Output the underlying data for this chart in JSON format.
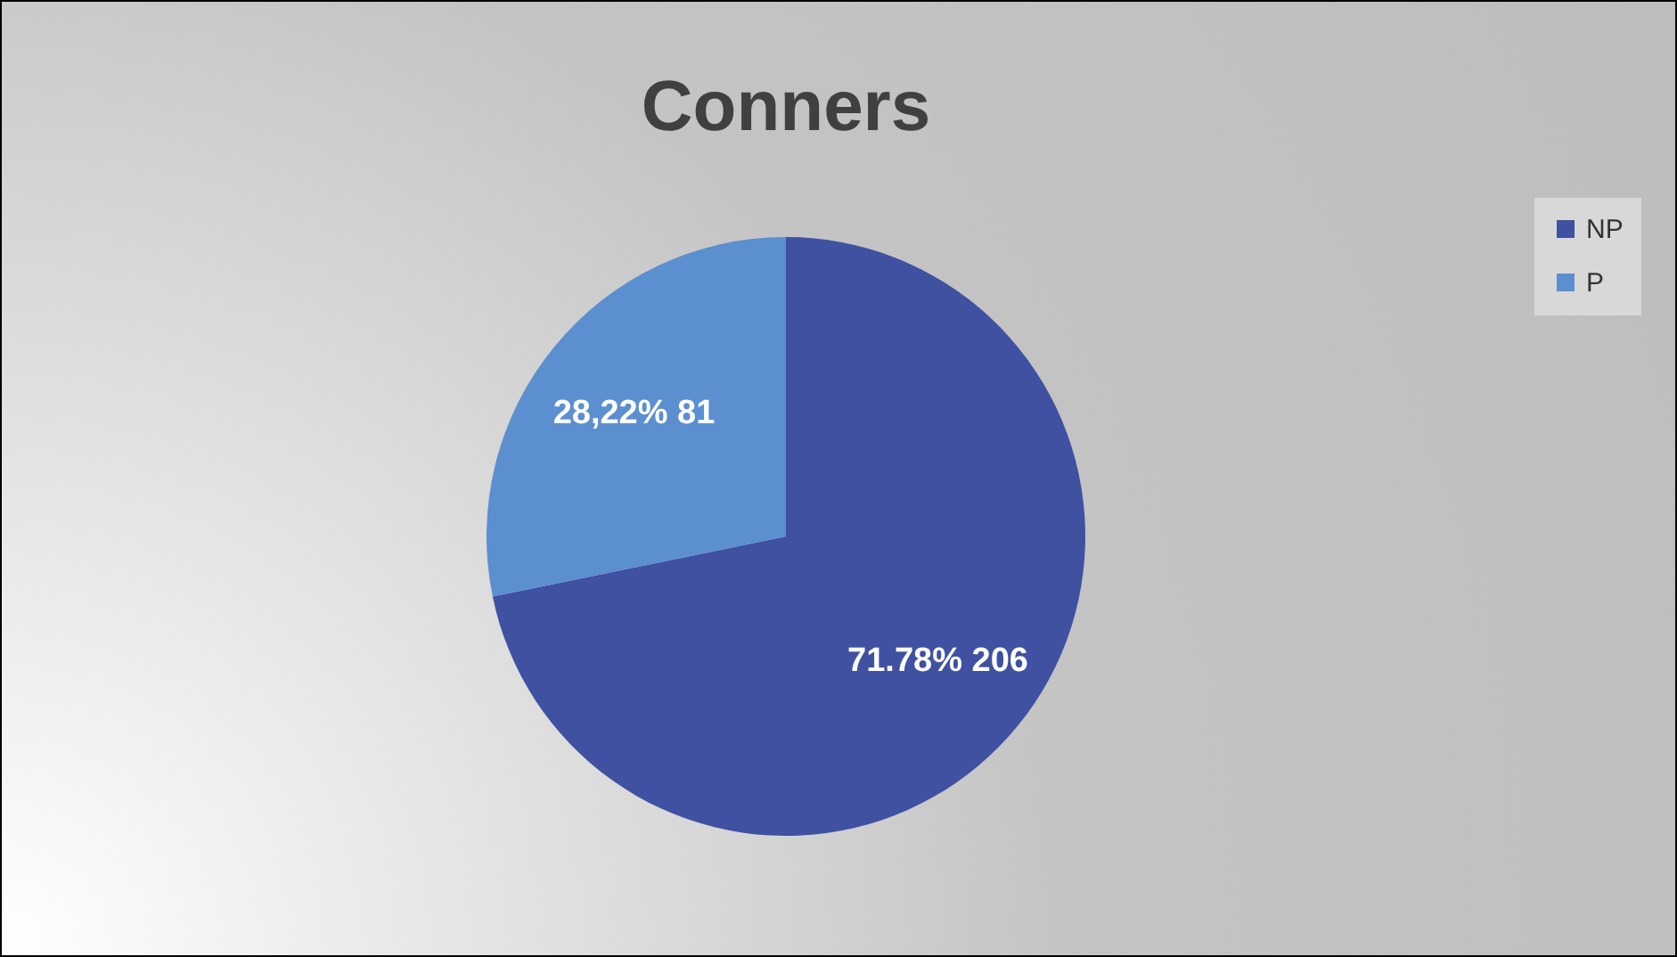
{
  "chart_data": {
    "type": "pie",
    "title": "Conners",
    "categories": [
      "NP",
      "P"
    ],
    "values": [
      206,
      81
    ],
    "colors": [
      "#3f51a0",
      "#5b8fd0"
    ],
    "value_labels": [
      "71.78% 206",
      "28,22% 81"
    ],
    "legend": "right"
  }
}
